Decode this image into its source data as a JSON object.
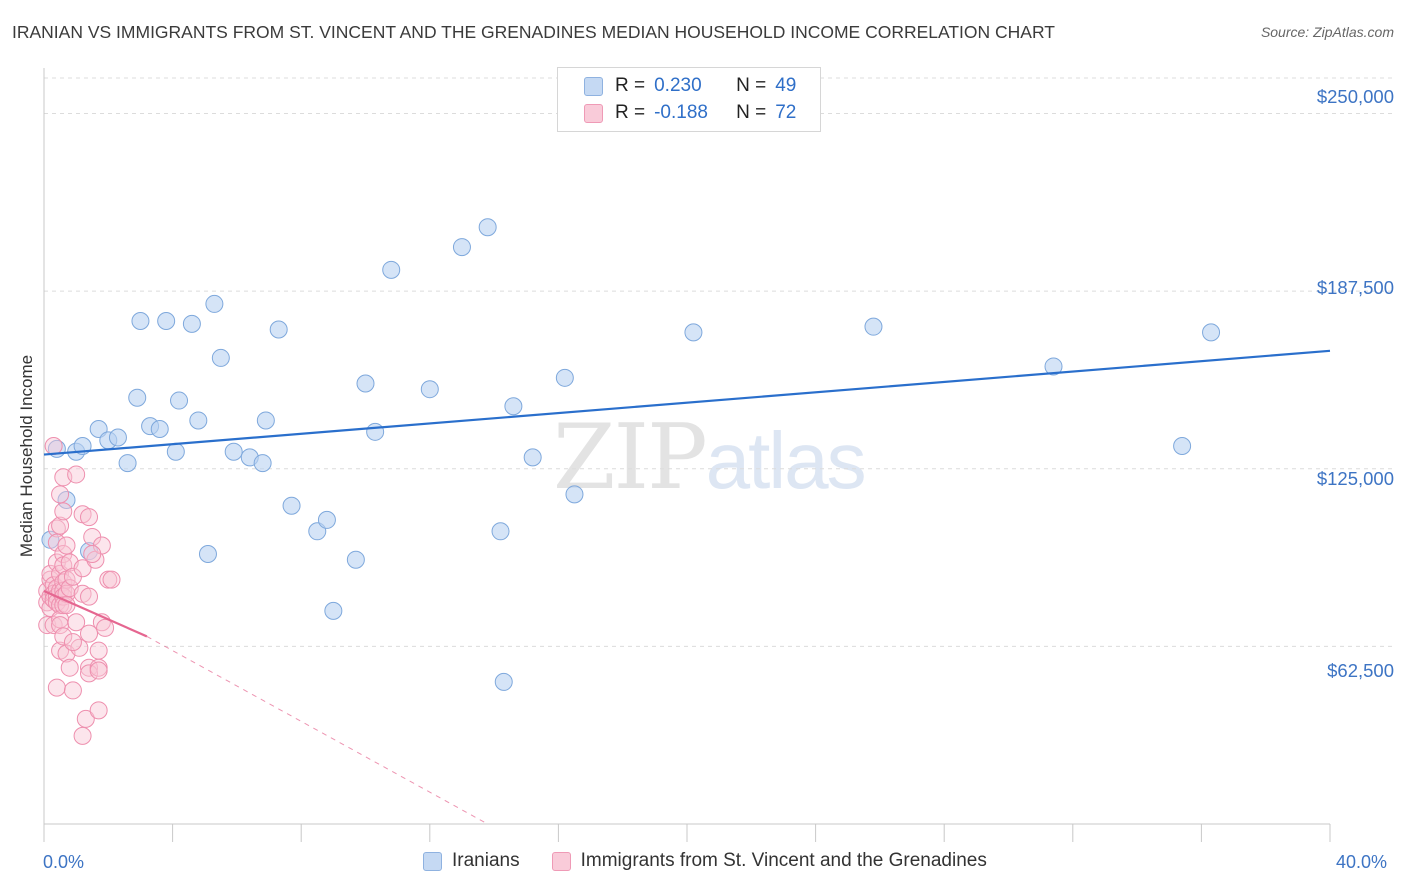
{
  "title": "IRANIAN VS IMMIGRANTS FROM ST. VINCENT AND THE GRENADINES MEDIAN HOUSEHOLD INCOME CORRELATION CHART",
  "source": "Source: ZipAtlas.com",
  "watermark": {
    "zip": "ZIP",
    "atlas": "atlas"
  },
  "colors": {
    "series_blue_fill": "#b9d2f2",
    "series_blue_stroke": "#7ea8dc",
    "series_blue_line": "#2a6fcc",
    "series_pink_fill": "#f8c5d4",
    "series_pink_stroke": "#ee8fae",
    "series_pink_line": "#e56690",
    "axis_text": "#3d74c4",
    "grid": "#dcdcdc"
  },
  "legend_stats": [
    {
      "r_label": "R =",
      "r_value": "0.230",
      "n_label": "N =",
      "n_value": "49"
    },
    {
      "r_label": "R =",
      "r_value": "-0.188",
      "n_label": "N =",
      "n_value": "72"
    }
  ],
  "chart_data": {
    "type": "scatter",
    "title": "IRANIAN VS IMMIGRANTS FROM ST. VINCENT AND THE GRENADINES MEDIAN HOUSEHOLD INCOME CORRELATION CHART",
    "xlabel": "",
    "ylabel": "Median Household Income",
    "xlim": [
      0,
      40
    ],
    "ylim": [
      0,
      262500
    ],
    "x_tick_labels": [
      "0.0%",
      "40.0%"
    ],
    "y_tick_labels": [
      "$62,500",
      "$125,000",
      "$187,500",
      "$250,000"
    ],
    "y_ticks": [
      62500,
      125000,
      187500,
      250000
    ],
    "grid": true,
    "legend_position": "bottom",
    "series": [
      {
        "name": "Iranians",
        "color": "#b9d2f2",
        "trend": {
          "x": [
            0.0,
            40.0
          ],
          "y": [
            130000,
            166500
          ]
        },
        "points": [
          [
            0.2,
            100000
          ],
          [
            0.7,
            114000
          ],
          [
            1.0,
            131000
          ],
          [
            1.2,
            133000
          ],
          [
            1.4,
            96000
          ],
          [
            1.7,
            139000
          ],
          [
            2.0,
            135000
          ],
          [
            2.3,
            136000
          ],
          [
            2.6,
            127000
          ],
          [
            2.9,
            150000
          ],
          [
            3.0,
            177000
          ],
          [
            3.3,
            140000
          ],
          [
            3.6,
            139000
          ],
          [
            3.8,
            177000
          ],
          [
            4.1,
            131000
          ],
          [
            4.2,
            149000
          ],
          [
            4.6,
            176000
          ],
          [
            4.8,
            142000
          ],
          [
            5.1,
            95000
          ],
          [
            5.3,
            183000
          ],
          [
            5.5,
            164000
          ],
          [
            5.9,
            131000
          ],
          [
            6.4,
            129000
          ],
          [
            6.8,
            127000
          ],
          [
            6.9,
            142000
          ],
          [
            7.3,
            174000
          ],
          [
            7.7,
            112000
          ],
          [
            8.5,
            103000
          ],
          [
            8.8,
            107000
          ],
          [
            9.7,
            93000
          ],
          [
            9.0,
            75000
          ],
          [
            10.0,
            155000
          ],
          [
            10.3,
            138000
          ],
          [
            10.8,
            195000
          ],
          [
            12.0,
            153000
          ],
          [
            13.0,
            203000
          ],
          [
            13.8,
            210000
          ],
          [
            14.2,
            103000
          ],
          [
            14.3,
            50000
          ],
          [
            14.6,
            147000
          ],
          [
            15.2,
            129000
          ],
          [
            16.2,
            157000
          ],
          [
            16.5,
            116000
          ],
          [
            20.2,
            173000
          ],
          [
            25.8,
            175000
          ],
          [
            31.4,
            161000
          ],
          [
            35.4,
            133000
          ],
          [
            36.3,
            173000
          ],
          [
            0.4,
            132000
          ]
        ]
      },
      {
        "name": "Immigrants from St. Vincent and the Grenadines",
        "color": "#f8c5d4",
        "trend": {
          "x": [
            0.0,
            3.2
          ],
          "y": [
            82000,
            66000
          ]
        },
        "trend_dashed": {
          "x": [
            3.2,
            13.8
          ],
          "y": [
            66000,
            0
          ]
        },
        "points": [
          [
            0.1,
            82000
          ],
          [
            0.1,
            78000
          ],
          [
            0.1,
            70000
          ],
          [
            0.2,
            86000
          ],
          [
            0.2,
            88000
          ],
          [
            0.2,
            80000
          ],
          [
            0.2,
            76000
          ],
          [
            0.3,
            133000
          ],
          [
            0.3,
            84000
          ],
          [
            0.3,
            81000
          ],
          [
            0.3,
            79000
          ],
          [
            0.3,
            70000
          ],
          [
            0.4,
            104000
          ],
          [
            0.4,
            99000
          ],
          [
            0.4,
            92000
          ],
          [
            0.4,
            83000
          ],
          [
            0.4,
            80000
          ],
          [
            0.4,
            78000
          ],
          [
            0.4,
            48000
          ],
          [
            0.5,
            116000
          ],
          [
            0.5,
            105000
          ],
          [
            0.5,
            88000
          ],
          [
            0.5,
            82000
          ],
          [
            0.5,
            77000
          ],
          [
            0.5,
            72000
          ],
          [
            0.5,
            70000
          ],
          [
            0.5,
            61000
          ],
          [
            0.6,
            122000
          ],
          [
            0.6,
            110000
          ],
          [
            0.6,
            95000
          ],
          [
            0.6,
            91000
          ],
          [
            0.6,
            85000
          ],
          [
            0.6,
            82000
          ],
          [
            0.6,
            80000
          ],
          [
            0.6,
            77000
          ],
          [
            0.6,
            66000
          ],
          [
            0.7,
            98000
          ],
          [
            0.7,
            86000
          ],
          [
            0.7,
            81000
          ],
          [
            0.7,
            77000
          ],
          [
            0.7,
            60000
          ],
          [
            0.8,
            92000
          ],
          [
            0.8,
            83000
          ],
          [
            0.8,
            55000
          ],
          [
            0.9,
            47000
          ],
          [
            0.9,
            87000
          ],
          [
            1.0,
            123000
          ],
          [
            1.0,
            71000
          ],
          [
            1.1,
            62000
          ],
          [
            1.2,
            109000
          ],
          [
            1.2,
            90000
          ],
          [
            1.2,
            81000
          ],
          [
            1.2,
            31000
          ],
          [
            1.3,
            37000
          ],
          [
            1.4,
            108000
          ],
          [
            1.4,
            80000
          ],
          [
            1.4,
            67000
          ],
          [
            1.4,
            55000
          ],
          [
            1.4,
            53000
          ],
          [
            1.5,
            101000
          ],
          [
            1.6,
            93000
          ],
          [
            1.7,
            61000
          ],
          [
            1.7,
            55000
          ],
          [
            1.7,
            54000
          ],
          [
            1.7,
            40000
          ],
          [
            1.8,
            98000
          ],
          [
            1.8,
            71000
          ],
          [
            1.9,
            69000
          ],
          [
            2.0,
            86000
          ],
          [
            2.1,
            86000
          ],
          [
            1.5,
            95000
          ],
          [
            0.9,
            64000
          ]
        ]
      }
    ]
  },
  "axes": {
    "ylabel": "Median Household Income",
    "x_min_label": "0.0%",
    "x_max_label": "40.0%",
    "y_labels": [
      "$62,500",
      "$125,000",
      "$187,500",
      "$250,000"
    ]
  },
  "legend_bottom": [
    {
      "label": "Iranians"
    },
    {
      "label": "Immigrants from St. Vincent and the Grenadines"
    }
  ]
}
